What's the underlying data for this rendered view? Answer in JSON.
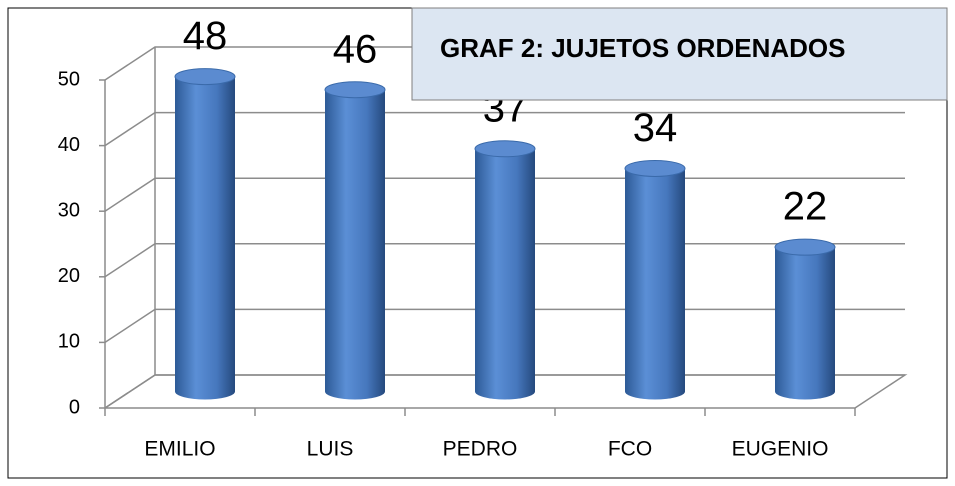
{
  "chart_data": {
    "type": "bar3d",
    "title": "GRAF 2: JUJETOS ORDENADOS",
    "categories": [
      "EMILIO",
      "LUIS",
      "PEDRO",
      "FCO",
      "EUGENIO"
    ],
    "values": [
      48,
      46,
      37,
      34,
      22
    ],
    "color": "#4f81bd",
    "ylim": [
      0,
      50
    ],
    "yticks": [
      0,
      10,
      20,
      30,
      40,
      50
    ],
    "grid": true
  }
}
